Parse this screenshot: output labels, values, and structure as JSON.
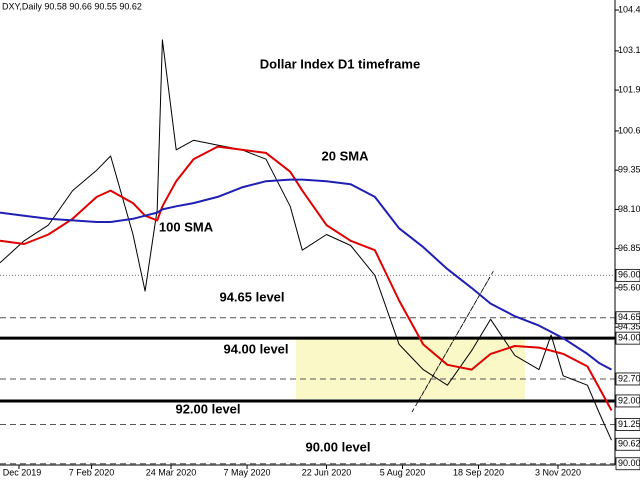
{
  "chart_data": {
    "type": "line",
    "title": "Dollar Index D1 timeframe",
    "header": "DXY,Daily  90.58 90.66 90.55 90.62",
    "x": [
      "2019-12-16",
      "2019-12-30",
      "2020-01-13",
      "2020-01-27",
      "2020-02-10",
      "2020-02-18",
      "2020-03-02",
      "2020-03-09",
      "2020-03-16",
      "2020-03-19",
      "2020-03-27",
      "2020-04-06",
      "2020-04-20",
      "2020-05-04",
      "2020-05-18",
      "2020-06-01",
      "2020-06-08",
      "2020-06-22",
      "2020-07-06",
      "2020-07-20",
      "2020-08-03",
      "2020-08-17",
      "2020-08-31",
      "2020-09-14",
      "2020-09-25",
      "2020-10-09",
      "2020-10-23",
      "2020-10-30",
      "2020-11-06",
      "2020-11-20",
      "2020-11-27",
      "2020-12-04"
    ],
    "series": [
      {
        "name": "DXY",
        "color": "#000000",
        "width": 1,
        "values": [
          96.4,
          97.1,
          97.6,
          98.7,
          99.35,
          99.8,
          97.3,
          95.5,
          98.1,
          103.5,
          100.0,
          100.3,
          100.15,
          100.0,
          99.7,
          98.2,
          96.8,
          97.3,
          96.95,
          96.0,
          93.8,
          93.0,
          92.5,
          93.6,
          94.6,
          93.45,
          93.0,
          94.1,
          92.8,
          92.5,
          91.6,
          90.75
        ]
      },
      {
        "name": "20 SMA",
        "color": "#e00000",
        "width": 2,
        "values": [
          97.1,
          97.0,
          97.3,
          97.8,
          98.5,
          98.7,
          98.3,
          97.9,
          97.75,
          98.2,
          99.0,
          99.7,
          100.1,
          100.0,
          99.9,
          99.3,
          98.7,
          97.6,
          97.1,
          96.8,
          95.2,
          93.8,
          93.15,
          93.0,
          93.5,
          93.75,
          93.7,
          93.6,
          93.5,
          93.1,
          92.4,
          91.7
        ]
      },
      {
        "name": "100 SMA",
        "color": "#1f1fb4",
        "width": 2,
        "values": [
          98.0,
          97.9,
          97.8,
          97.75,
          97.7,
          97.7,
          97.8,
          97.9,
          98.0,
          98.1,
          98.2,
          98.3,
          98.5,
          98.8,
          99.0,
          99.05,
          99.05,
          99.0,
          98.9,
          98.5,
          97.5,
          96.9,
          96.2,
          95.6,
          95.1,
          94.7,
          94.4,
          94.2,
          94.0,
          93.5,
          93.2,
          93.0
        ]
      }
    ],
    "xlim": [
      "2019-12-16",
      "2020-12-06"
    ],
    "xticks": [
      {
        "value": "2019-12-27",
        "label": "Dec 2019"
      },
      {
        "value": "2020-02-07",
        "label": "7 Feb 2020"
      },
      {
        "value": "2020-03-24",
        "label": "24 Mar 2020"
      },
      {
        "value": "2020-05-07",
        "label": "7 May 2020"
      },
      {
        "value": "2020-06-22",
        "label": "22 Jun 2020"
      },
      {
        "value": "2020-08-05",
        "label": "5 Aug 2020"
      },
      {
        "value": "2020-09-18",
        "label": "18 Sep 2020"
      },
      {
        "value": "2020-11-03",
        "label": "3 Nov 2020"
      }
    ],
    "ylim": [
      89.96,
      104.77
    ],
    "yticks": [
      104.45,
      103.15,
      {
        "value": 101.9,
        "label": "101.90"
      },
      {
        "value": 100.6,
        "label": "100.60"
      },
      99.35,
      {
        "value": 98.1,
        "label": "98.10"
      },
      96.85,
      {
        "value": 95.6,
        "label": "95.60"
      },
      94.35
    ],
    "levels": [
      {
        "value": 96,
        "label": "96.00",
        "style": "dotted"
      },
      {
        "value": 94.65,
        "label": "94.65",
        "style": "dashed"
      },
      {
        "value": 94,
        "label": "94.00",
        "style": "thick"
      },
      {
        "value": 92.7,
        "label": "92.70",
        "style": "dashed"
      },
      {
        "value": 92,
        "label": "92.00",
        "style": "thick"
      },
      {
        "value": 91.25,
        "label": "91.25",
        "style": "dashed"
      },
      {
        "value": 90.62,
        "label": "90.62",
        "style": "none"
      },
      {
        "value": 90,
        "label": "90.00",
        "style": "dashed"
      }
    ],
    "annotations": [
      {
        "text": "Dollar Index D1 timeframe",
        "color": "#000000"
      },
      {
        "text": "20 SMA",
        "color": "#e00000"
      },
      {
        "text": "100 SMA",
        "color": "#1f1fb4"
      },
      {
        "text": "94.65 level",
        "color": "#000000"
      },
      {
        "text": "94.00 level",
        "color": "#000000"
      },
      {
        "text": "92.00 level",
        "color": "#000000"
      },
      {
        "text": "90.00 level",
        "color": "#000000"
      }
    ]
  }
}
